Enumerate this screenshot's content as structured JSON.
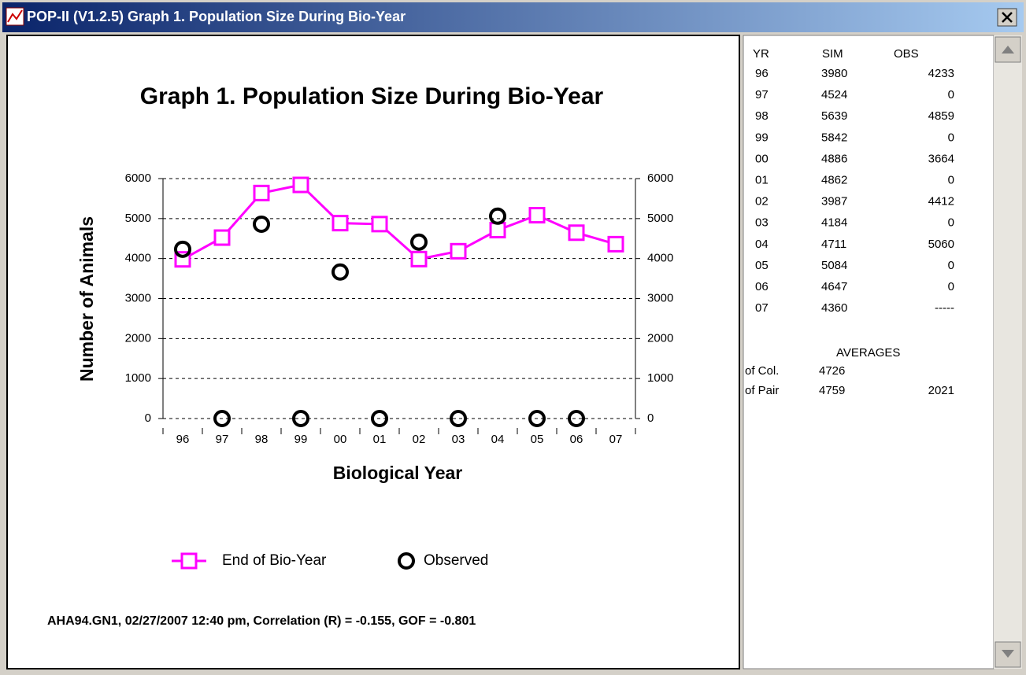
{
  "window": {
    "title": "POP-II (V1.2.5) Graph 1.  Population Size During Bio-Year"
  },
  "chart_data": {
    "type": "line",
    "title": "Graph 1.  Population Size During Bio-Year",
    "x_label": "Biological Year",
    "y_label": "Number of Animals",
    "categories": [
      "96",
      "97",
      "98",
      "99",
      "00",
      "01",
      "02",
      "03",
      "04",
      "05",
      "06",
      "07"
    ],
    "series": [
      {
        "name": "End of Bio-Year",
        "color": "#ff00ff",
        "marker": "square",
        "line": true,
        "values": [
          3980,
          4524,
          5639,
          5842,
          4886,
          4862,
          3987,
          4184,
          4711,
          5084,
          4647,
          4360
        ]
      },
      {
        "name": "Observed",
        "color": "#000000",
        "marker": "circle",
        "line": false,
        "values": [
          4233,
          0,
          4859,
          0,
          3664,
          0,
          4412,
          0,
          5060,
          0,
          0,
          null
        ]
      }
    ],
    "ylim": [
      0,
      6000
    ],
    "yticks": [
      0,
      1000,
      2000,
      3000,
      4000,
      5000,
      6000
    ],
    "y2lim": [
      0,
      6000
    ],
    "y2ticks": [
      0,
      1000,
      2000,
      3000,
      4000,
      5000,
      6000
    ],
    "grid": true,
    "footer": "AHA94.GN1, 02/27/2007   12:40 pm, Correlation (R) = -0.155, GOF = -0.801"
  },
  "table": {
    "headers": [
      "YR",
      "SIM",
      "OBS"
    ],
    "rows": [
      [
        "96",
        "3980",
        "4233"
      ],
      [
        "97",
        "4524",
        "0"
      ],
      [
        "98",
        "5639",
        "4859"
      ],
      [
        "99",
        "5842",
        "0"
      ],
      [
        "00",
        "4886",
        "3664"
      ],
      [
        "01",
        "4862",
        "0"
      ],
      [
        "02",
        "3987",
        "4412"
      ],
      [
        "03",
        "4184",
        "0"
      ],
      [
        "04",
        "4711",
        "5060"
      ],
      [
        "05",
        "5084",
        "0"
      ],
      [
        "06",
        "4647",
        "0"
      ],
      [
        "07",
        "4360",
        "-----"
      ]
    ],
    "averages_title": "AVERAGES",
    "averages": [
      [
        "of Col.",
        "4726"
      ],
      [
        "of Pair",
        "4759",
        "2021"
      ]
    ]
  }
}
